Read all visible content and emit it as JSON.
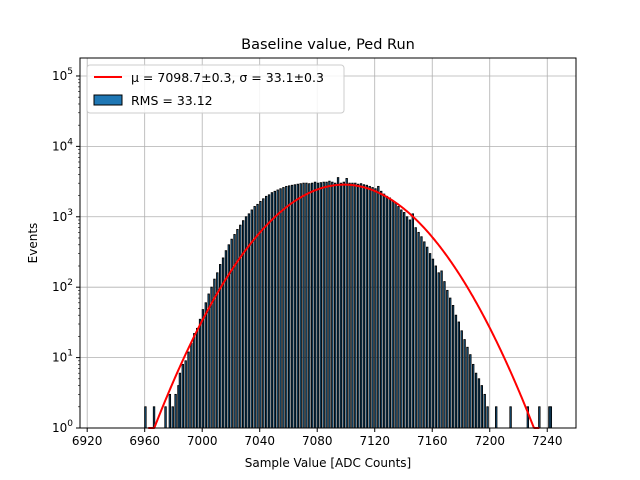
{
  "chart_data": {
    "type": "bar",
    "title": "Baseline value, Ped Run",
    "xlabel": "Sample Value [ADC Counts]",
    "ylabel": "Events",
    "xlim": [
      6915,
      7260
    ],
    "ylim": [
      1,
      180000
    ],
    "yscale": "log",
    "grid": true,
    "x_ticks": [
      6920,
      6960,
      7000,
      7040,
      7080,
      7120,
      7160,
      7200,
      7240
    ],
    "y_ticks": [
      {
        "value": 1,
        "label": "10",
        "exp": "0"
      },
      {
        "value": 10,
        "label": "10",
        "exp": "1"
      },
      {
        "value": 100,
        "label": "10",
        "exp": "2"
      },
      {
        "value": 1000,
        "label": "10",
        "exp": "3"
      },
      {
        "value": 10000,
        "label": "10",
        "exp": "4"
      },
      {
        "value": 100000,
        "label": "10",
        "exp": "5"
      }
    ],
    "histogram": {
      "name": "RMS = 33.12",
      "color": "#1f77b4",
      "edgecolor": "#000000",
      "bin_width": 1,
      "bins": [
        {
          "x": 6960,
          "y": 2
        },
        {
          "x": 6966,
          "y": 2
        },
        {
          "x": 6974,
          "y": 2
        },
        {
          "x": 6977,
          "y": 3
        },
        {
          "x": 6979,
          "y": 2
        },
        {
          "x": 6981,
          "y": 3
        },
        {
          "x": 6983,
          "y": 4
        },
        {
          "x": 6984,
          "y": 6
        },
        {
          "x": 6986,
          "y": 8
        },
        {
          "x": 6988,
          "y": 9
        },
        {
          "x": 6990,
          "y": 12
        },
        {
          "x": 6992,
          "y": 16
        },
        {
          "x": 6994,
          "y": 22
        },
        {
          "x": 6996,
          "y": 26
        },
        {
          "x": 6998,
          "y": 35
        },
        {
          "x": 7000,
          "y": 48
        },
        {
          "x": 7002,
          "y": 60
        },
        {
          "x": 7004,
          "y": 80
        },
        {
          "x": 7006,
          "y": 100
        },
        {
          "x": 7008,
          "y": 130
        },
        {
          "x": 7010,
          "y": 160
        },
        {
          "x": 7012,
          "y": 210
        },
        {
          "x": 7014,
          "y": 260
        },
        {
          "x": 7016,
          "y": 330
        },
        {
          "x": 7018,
          "y": 400
        },
        {
          "x": 7020,
          "y": 480
        },
        {
          "x": 7022,
          "y": 560
        },
        {
          "x": 7024,
          "y": 660
        },
        {
          "x": 7026,
          "y": 760
        },
        {
          "x": 7028,
          "y": 880
        },
        {
          "x": 7030,
          "y": 1000
        },
        {
          "x": 7032,
          "y": 1100
        },
        {
          "x": 7034,
          "y": 1250
        },
        {
          "x": 7036,
          "y": 1400
        },
        {
          "x": 7038,
          "y": 1500
        },
        {
          "x": 7040,
          "y": 1650
        },
        {
          "x": 7042,
          "y": 1800
        },
        {
          "x": 7044,
          "y": 1950
        },
        {
          "x": 7046,
          "y": 2050
        },
        {
          "x": 7048,
          "y": 2200
        },
        {
          "x": 7050,
          "y": 2300
        },
        {
          "x": 7052,
          "y": 2400
        },
        {
          "x": 7054,
          "y": 2500
        },
        {
          "x": 7056,
          "y": 2600
        },
        {
          "x": 7058,
          "y": 2700
        },
        {
          "x": 7060,
          "y": 2750
        },
        {
          "x": 7062,
          "y": 2800
        },
        {
          "x": 7064,
          "y": 2850
        },
        {
          "x": 7066,
          "y": 2900
        },
        {
          "x": 7068,
          "y": 2950
        },
        {
          "x": 7070,
          "y": 3000
        },
        {
          "x": 7072,
          "y": 3000
        },
        {
          "x": 7074,
          "y": 2950
        },
        {
          "x": 7076,
          "y": 3000
        },
        {
          "x": 7078,
          "y": 3100
        },
        {
          "x": 7080,
          "y": 3000
        },
        {
          "x": 7082,
          "y": 3050
        },
        {
          "x": 7084,
          "y": 3100
        },
        {
          "x": 7086,
          "y": 3100
        },
        {
          "x": 7088,
          "y": 3200
        },
        {
          "x": 7090,
          "y": 3100
        },
        {
          "x": 7092,
          "y": 3000
        },
        {
          "x": 7094,
          "y": 3600
        },
        {
          "x": 7096,
          "y": 3000
        },
        {
          "x": 7098,
          "y": 3100
        },
        {
          "x": 7100,
          "y": 3500
        },
        {
          "x": 7102,
          "y": 3000
        },
        {
          "x": 7104,
          "y": 3000
        },
        {
          "x": 7106,
          "y": 3000
        },
        {
          "x": 7108,
          "y": 2900
        },
        {
          "x": 7110,
          "y": 2950
        },
        {
          "x": 7112,
          "y": 2850
        },
        {
          "x": 7114,
          "y": 2800
        },
        {
          "x": 7116,
          "y": 2700
        },
        {
          "x": 7118,
          "y": 2600
        },
        {
          "x": 7120,
          "y": 2500
        },
        {
          "x": 7122,
          "y": 2700
        },
        {
          "x": 7124,
          "y": 2300
        },
        {
          "x": 7126,
          "y": 2100
        },
        {
          "x": 7128,
          "y": 1950
        },
        {
          "x": 7130,
          "y": 1850
        },
        {
          "x": 7132,
          "y": 1700
        },
        {
          "x": 7134,
          "y": 1550
        },
        {
          "x": 7136,
          "y": 1400
        },
        {
          "x": 7138,
          "y": 1250
        },
        {
          "x": 7140,
          "y": 1150
        },
        {
          "x": 7142,
          "y": 1000
        },
        {
          "x": 7144,
          "y": 900
        },
        {
          "x": 7146,
          "y": 1100
        },
        {
          "x": 7148,
          "y": 700
        },
        {
          "x": 7150,
          "y": 600
        },
        {
          "x": 7152,
          "y": 520
        },
        {
          "x": 7154,
          "y": 440
        },
        {
          "x": 7156,
          "y": 370
        },
        {
          "x": 7158,
          "y": 300
        },
        {
          "x": 7160,
          "y": 250
        },
        {
          "x": 7162,
          "y": 200
        },
        {
          "x": 7164,
          "y": 160
        },
        {
          "x": 7166,
          "y": 170
        },
        {
          "x": 7168,
          "y": 120
        },
        {
          "x": 7170,
          "y": 90
        },
        {
          "x": 7172,
          "y": 70
        },
        {
          "x": 7174,
          "y": 55
        },
        {
          "x": 7176,
          "y": 40
        },
        {
          "x": 7178,
          "y": 32
        },
        {
          "x": 7180,
          "y": 24
        },
        {
          "x": 7182,
          "y": 18
        },
        {
          "x": 7184,
          "y": 14
        },
        {
          "x": 7186,
          "y": 11
        },
        {
          "x": 7188,
          "y": 8
        },
        {
          "x": 7190,
          "y": 6
        },
        {
          "x": 7192,
          "y": 5
        },
        {
          "x": 7194,
          "y": 4
        },
        {
          "x": 7196,
          "y": 3
        },
        {
          "x": 7198,
          "y": 2
        },
        {
          "x": 7204,
          "y": 2
        },
        {
          "x": 7214,
          "y": 2
        },
        {
          "x": 7226,
          "y": 2
        },
        {
          "x": 7234,
          "y": 2
        },
        {
          "x": 7241,
          "y": 2
        },
        {
          "x": 7242,
          "y": 2
        }
      ]
    },
    "series": [
      {
        "name": "μ = 7098.7±0.3, σ = 33.1±0.3",
        "type": "line",
        "color": "#ff0000",
        "mu": 7098.7,
        "sigma": 33.1,
        "amplitude": 2860,
        "x_range": [
          6960,
          7240
        ]
      }
    ],
    "legend": {
      "placement": "top-left",
      "entries": [
        {
          "label": "μ = 7098.7±0.3, σ = 33.1±0.3",
          "kind": "line",
          "color": "#ff0000"
        },
        {
          "label": "RMS = 33.12",
          "kind": "patch",
          "color": "#1f77b4"
        }
      ]
    }
  }
}
